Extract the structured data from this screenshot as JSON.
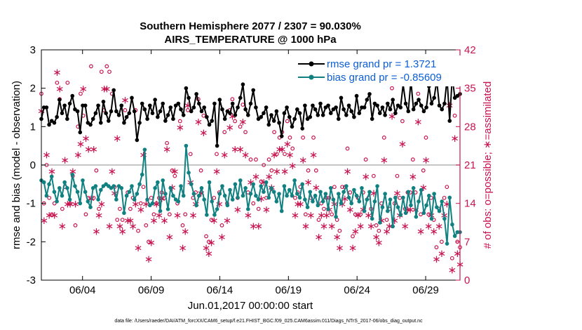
{
  "chart_data": {
    "type": "line",
    "title_line1": "Southern Hemisphere 2077 / 2307 = 90.030%",
    "title_line2": "AIRS_TEMPERATURE @ 1000 hPa",
    "xlabel": "Jun.01,2017 00:00:00 start",
    "ylabel_left": "rmse and bias (model - observation)",
    "ylabel_right": "# of obs: o=possible; ∗=assimilated",
    "footnote": "data file: /Users/raeder/DAI/ATM_forcXX/CAM6_setup/f.e21.FHIST_BGC.f09_025.CAM6assim.011/Diags_NTrS_2017-06/obs_diag_output.nc",
    "x_range_days": [
      1,
      31.5
    ],
    "ylim_left": [
      -3,
      3
    ],
    "ylim_right": [
      0,
      42
    ],
    "x_ticks": [
      {
        "day": 4,
        "label": "06/04"
      },
      {
        "day": 9,
        "label": "06/09"
      },
      {
        "day": 14,
        "label": "06/14"
      },
      {
        "day": 19,
        "label": "06/19"
      },
      {
        "day": 24,
        "label": "06/24"
      },
      {
        "day": 29,
        "label": "06/29"
      }
    ],
    "y_ticks_left": [
      "3",
      "2",
      "1",
      "0",
      "-1",
      "-2",
      "-3"
    ],
    "y_ticks_right": [
      "42",
      "35",
      "28",
      "21",
      "14",
      "7",
      "0"
    ],
    "colors": {
      "rmse": "#000000",
      "bias": "#108080",
      "obs": "#c8144e",
      "zero_line": "#b4b4b4",
      "legend_text": "#0b5ed7"
    },
    "series": [
      {
        "name": "rmse grand pr = 1.3721",
        "axis": "left",
        "values": [
          1.2,
          1.5,
          1.5,
          1.05,
          1.15,
          1.1,
          1.25,
          1.7,
          1.35,
          1.55,
          1.2,
          1.6,
          1.8,
          1.45,
          1.4,
          0.85,
          1.55,
          1.55,
          1.1,
          1.05,
          1.2,
          1.35,
          1.55,
          1.1,
          1.65,
          1.35,
          1.15,
          1.4,
          1.95,
          1.4,
          1.3,
          1.55,
          1.1,
          1.25,
          1.35,
          1.75,
          1.4,
          0.65,
          1.1,
          1.6,
          1.45,
          1.2,
          1.55,
          1.35,
          1.7,
          1.25,
          1.4,
          1.6,
          1.15,
          1.3,
          1.5,
          1.2,
          1.55,
          1.6,
          1.45,
          1.3,
          2.0,
          1.75,
          1.4,
          1.5,
          1.85,
          1.6,
          1.4,
          1.5,
          1.25,
          1.05,
          1.15,
          1.6,
          0.5,
          1.7,
          1.45,
          1.2,
          1.4,
          1.35,
          1.6,
          1.3,
          1.5,
          1.75,
          2.1,
          1.45,
          1.3,
          1.6,
          1.95,
          1.5,
          1.2,
          1.25,
          1.35,
          1.5,
          1.05,
          1.3,
          1.15,
          1.4,
          1.1,
          0.75,
          1.35,
          1.5,
          1.25,
          1.0,
          1.2,
          1.45,
          1.35,
          0.95,
          1.55,
          1.2,
          1.25,
          1.55,
          1.45,
          1.3,
          1.6,
          1.3,
          1.5,
          1.55,
          1.35,
          1.45,
          1.5,
          1.2,
          1.75,
          1.45,
          1.3,
          1.55,
          1.4,
          1.25,
          1.8,
          1.35,
          1.5,
          1.5,
          1.7,
          1.85,
          1.2,
          1.6,
          1.55,
          1.35,
          1.5,
          1.3,
          1.6,
          1.45,
          1.7,
          1.35,
          1.55,
          1.5,
          2.1,
          1.6,
          1.4,
          2.2,
          1.45,
          1.6,
          1.7,
          1.55,
          1.4,
          1.5,
          2.05,
          1.6,
          1.75,
          2.2,
          1.55,
          1.45,
          1.6,
          2.25,
          1.15,
          2.3,
          1.75,
          1.8,
          1.85
        ]
      },
      {
        "name": "bias grand pr = -0.85609",
        "axis": "left",
        "values": [
          -0.4,
          -0.45,
          -0.8,
          -0.5,
          -0.3,
          -0.7,
          -0.95,
          -0.6,
          -0.8,
          -0.45,
          -0.6,
          -0.9,
          -0.25,
          -0.55,
          -0.7,
          -1.0,
          -0.4,
          -0.7,
          -0.95,
          -1.1,
          -0.6,
          -0.55,
          -0.9,
          -0.65,
          -0.55,
          -0.5,
          -0.55,
          -0.6,
          -0.55,
          -0.9,
          -0.55,
          -0.6,
          -1.25,
          -0.8,
          -0.7,
          -0.55,
          -0.9,
          -0.75,
          -0.5,
          -0.25,
          0.4,
          -0.9,
          -1.05,
          -1.0,
          -0.6,
          -0.45,
          -1.2,
          -0.4,
          -0.75,
          -1.15,
          -0.6,
          -0.8,
          -0.9,
          -0.95,
          -0.55,
          -0.8,
          0.5,
          -0.2,
          -0.5,
          -0.75,
          -1.05,
          -0.8,
          -0.6,
          -0.9,
          -1.3,
          -0.45,
          -0.95,
          -1.3,
          -1.15,
          -0.75,
          -0.55,
          -0.8,
          -1.05,
          -0.65,
          -0.9,
          -0.5,
          -0.85,
          -0.4,
          -0.8,
          -0.6,
          -1.15,
          -0.75,
          -0.5,
          -0.8,
          -0.9,
          -0.55,
          -0.7,
          -0.45,
          -0.85,
          -0.6,
          -0.7,
          -0.95,
          -0.75,
          -1.2,
          -0.55,
          -0.8,
          -0.65,
          -0.8,
          -0.4,
          -0.75,
          -0.85,
          -0.5,
          -0.9,
          -1.1,
          -0.7,
          -0.95,
          -0.8,
          -1.05,
          -0.7,
          -0.95,
          -0.75,
          -1.15,
          -0.6,
          -0.9,
          -1.35,
          -0.75,
          -1.0,
          -0.7,
          -0.55,
          -0.85,
          -1.0,
          -0.65,
          -0.8,
          -0.95,
          -0.6,
          -1.2,
          -0.9,
          -0.7,
          -1.4,
          -0.95,
          -0.55,
          -1.5,
          -1.1,
          -0.75,
          -1.2,
          -0.9,
          -1.6,
          -0.85,
          -1.1,
          -1.3,
          -0.85,
          -1.25,
          -0.7,
          -1.05,
          -0.6,
          -1.35,
          -0.95,
          -0.65,
          -1.25,
          -1.05,
          -0.8,
          -1.4,
          -0.75,
          -1.1,
          -1.2,
          -0.95,
          -1.4,
          -2.05,
          -0.85,
          -1.55,
          -1.85,
          -1.75,
          -1.75
        ]
      },
      {
        "name": "possible",
        "axis": "right",
        "marker": "o",
        "values": [
          34,
          14,
          21,
          15,
          12,
          14,
          36,
          33,
          13,
          17,
          36,
          14,
          19,
          10,
          28,
          34,
          30,
          12,
          15,
          39,
          15,
          20,
          13,
          38,
          31,
          39,
          38,
          34,
          17,
          11,
          13,
          11,
          31,
          16,
          13,
          15,
          31,
          9,
          14,
          17,
          10,
          7,
          15,
          12,
          14,
          15,
          16,
          15,
          25,
          12,
          20,
          19,
          14,
          29,
          10,
          12,
          31,
          23,
          15,
          16,
          33,
          20,
          30,
          8,
          7,
          11,
          15,
          23,
          16,
          10,
          27,
          14,
          31,
          33,
          29,
          15,
          28,
          32,
          27,
          16,
          22,
          14,
          22,
          13,
          18,
          21,
          15,
          22,
          20,
          27,
          23,
          26,
          27,
          23,
          29,
          26,
          24,
          15,
          16,
          17,
          26,
          12,
          20,
          15,
          26,
          20,
          11,
          14,
          13,
          15,
          15,
          12,
          17,
          11,
          9,
          17,
          17,
          24,
          16,
          8,
          12,
          15,
          12,
          16,
          22,
          15,
          13,
          19,
          10,
          9,
          14,
          26,
          11,
          13,
          35,
          14,
          19,
          15,
          29,
          13,
          16,
          16,
          22,
          16,
          34,
          12,
          20,
          26,
          12,
          15,
          11,
          6,
          13,
          7,
          15,
          17,
          37,
          4,
          30,
          7,
          6
        ]
      },
      {
        "name": "assimilated",
        "axis": "right",
        "marker": "*",
        "values": [
          31,
          11,
          23,
          12,
          20,
          12,
          38,
          35,
          10,
          22,
          14,
          14,
          20,
          14,
          23,
          25,
          35,
          26,
          24,
          15,
          24,
          9,
          12,
          14,
          35,
          35,
          10,
          20,
          16,
          26,
          10,
          9,
          33,
          11,
          11,
          10,
          14,
          6,
          13,
          23,
          14,
          4,
          7,
          11,
          14,
          12,
          15,
          11,
          24,
          8,
          17,
          20,
          12,
          28,
          6,
          9,
          32,
          18,
          12,
          14,
          29,
          16,
          27,
          6,
          5,
          7,
          11,
          20,
          14,
          8,
          23,
          11,
          28,
          30,
          24,
          13,
          24,
          29,
          23,
          12,
          18,
          10,
          19,
          10,
          15,
          18,
          13,
          19,
          17,
          23,
          20,
          24,
          24,
          20,
          25,
          23,
          21,
          12,
          14,
          14,
          22,
          10,
          18,
          12,
          23,
          17,
          8,
          12,
          10,
          12,
          13,
          10,
          14,
          8,
          6,
          14,
          15,
          20,
          13,
          6,
          9,
          12,
          10,
          13,
          19,
          12,
          10,
          16,
          8,
          7,
          11,
          22,
          9,
          10,
          30,
          11,
          16,
          12,
          25,
          10,
          13,
          13,
          19,
          13,
          29,
          9,
          17,
          22,
          10,
          12,
          9,
          4,
          10,
          5,
          12,
          14,
          32,
          2,
          26,
          5,
          3
        ]
      }
    ]
  }
}
